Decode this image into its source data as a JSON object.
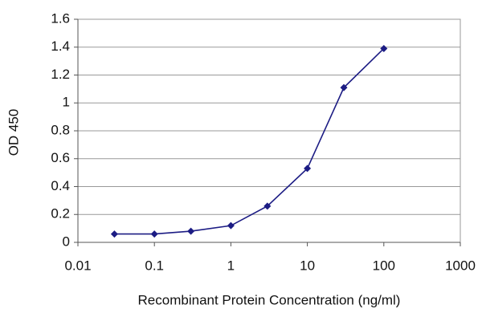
{
  "chart_data": {
    "type": "line",
    "x_label": "Recombinant Protein Concentration (ng/ml)",
    "y_label": "OD 450",
    "x": [
      0.03,
      0.1,
      0.3,
      1,
      3,
      10,
      30,
      100
    ],
    "series": [
      {
        "color": "#1c1c84",
        "values": [
          0.06,
          0.06,
          0.08,
          0.12,
          0.26,
          0.53,
          1.11,
          1.39
        ]
      }
    ],
    "x_log": true,
    "xlim": [
      0.01,
      1000
    ],
    "xticks": [
      0.01,
      0.1,
      1,
      10,
      100,
      1000
    ],
    "ylim": [
      0,
      1.6
    ],
    "yticks": [
      0,
      0.2,
      0.4,
      0.6,
      0.8,
      1,
      1.2,
      1.4,
      1.6
    ],
    "grid": true
  }
}
